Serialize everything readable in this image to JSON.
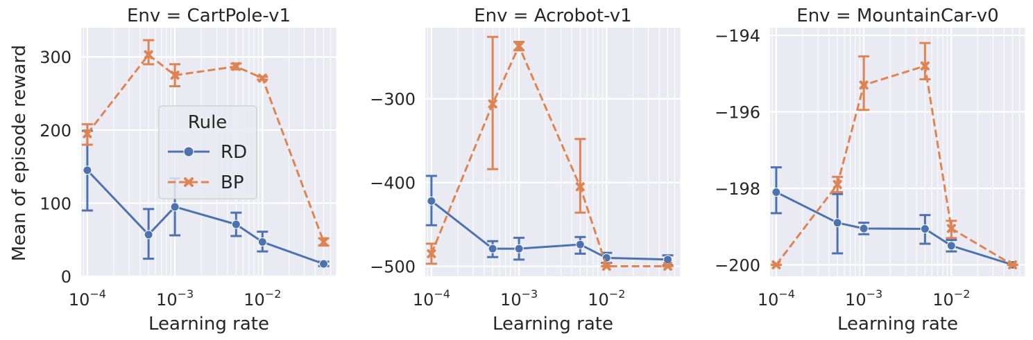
{
  "figure": {
    "ylabel": "Mean of episode reward",
    "xlabel": "Learning rate"
  },
  "legend": {
    "title": "Rule",
    "entries": [
      {
        "name": "RD",
        "color": "#4c72b0",
        "marker": "circle",
        "line": "solid"
      },
      {
        "name": "BP",
        "color": "#dd8452",
        "marker": "x",
        "line": "dashed"
      }
    ],
    "location": "center-left of first panel"
  },
  "style": {
    "panel_background": "#eaeaf2",
    "grid_color": "#ffffff",
    "grid": true,
    "x_scale": "log"
  },
  "chart_data": [
    {
      "type": "line",
      "title": "Env = CartPole-v1",
      "xlabel": "Learning rate",
      "ylabel": "Mean of episode reward",
      "xlim": [
        8.5e-05,
        0.07
      ],
      "ylim": [
        0,
        340
      ],
      "x_ticks": [
        {
          "base": "10",
          "exp": "−4",
          "value": 0.0001
        },
        {
          "base": "10",
          "exp": "−3",
          "value": 0.001
        },
        {
          "base": "10",
          "exp": "−2",
          "value": 0.01
        }
      ],
      "y_ticks": [
        {
          "label": "0",
          "value": 0
        },
        {
          "label": "100",
          "value": 100
        },
        {
          "label": "200",
          "value": 200
        },
        {
          "label": "300",
          "value": 300
        }
      ],
      "series": [
        {
          "name": "RD",
          "x": [
            0.0001,
            0.0005,
            0.001,
            0.005,
            0.01,
            0.05
          ],
          "y": [
            145,
            57,
            95,
            71,
            47,
            17
          ],
          "err_low": [
            90,
            24,
            56,
            55,
            34,
            14
          ],
          "err_high": [
            199,
            92,
            134,
            87,
            61,
            20
          ]
        },
        {
          "name": "BP",
          "x": [
            0.0001,
            0.0005,
            0.001,
            0.005,
            0.01,
            0.05
          ],
          "y": [
            195,
            303,
            275,
            287,
            271,
            47
          ],
          "err_low": [
            180,
            290,
            260,
            283,
            269,
            42
          ],
          "err_high": [
            208,
            323,
            290,
            291,
            273,
            52
          ]
        }
      ]
    },
    {
      "type": "line",
      "title": "Env = Acrobot-v1",
      "xlabel": "Learning rate",
      "ylabel": "",
      "xlim": [
        8.5e-05,
        0.07
      ],
      "ylim": [
        -512,
        -215
      ],
      "x_ticks": [
        {
          "base": "10",
          "exp": "−4",
          "value": 0.0001
        },
        {
          "base": "10",
          "exp": "−3",
          "value": 0.001
        },
        {
          "base": "10",
          "exp": "−2",
          "value": 0.01
        }
      ],
      "y_ticks": [
        {
          "label": "−300",
          "value": -300
        },
        {
          "label": "−400",
          "value": -400
        },
        {
          "label": "−500",
          "value": -500
        }
      ],
      "series": [
        {
          "name": "RD",
          "x": [
            0.0001,
            0.0005,
            0.001,
            0.005,
            0.01,
            0.05
          ],
          "y": [
            -422,
            -479,
            -479,
            -474,
            -490,
            -492
          ],
          "err_low": [
            -451,
            -489,
            -492,
            -485,
            -496,
            -499
          ],
          "err_high": [
            -392,
            -470,
            -466,
            -465,
            -484,
            -487
          ]
        },
        {
          "name": "BP",
          "x": [
            0.0001,
            0.0005,
            0.001,
            0.005,
            0.01,
            0.05
          ],
          "y": [
            -485,
            -306,
            -237,
            -405,
            -500,
            -500
          ],
          "err_low": [
            -497,
            -384,
            -242,
            -436,
            -500,
            -500
          ],
          "err_high": [
            -473,
            -226,
            -232,
            -348,
            -500,
            -500
          ]
        }
      ]
    },
    {
      "type": "line",
      "title": "Env = MountainCar-v0",
      "xlabel": "Learning rate",
      "ylabel": "",
      "xlim": [
        8.5e-05,
        0.07
      ],
      "ylim": [
        -200.3,
        -193.8
      ],
      "x_ticks": [
        {
          "base": "10",
          "exp": "−4",
          "value": 0.0001
        },
        {
          "base": "10",
          "exp": "−3",
          "value": 0.001
        },
        {
          "base": "10",
          "exp": "−2",
          "value": 0.01
        }
      ],
      "y_ticks": [
        {
          "label": "−194",
          "value": -194
        },
        {
          "label": "−196",
          "value": -196
        },
        {
          "label": "−198",
          "value": -198
        },
        {
          "label": "−200",
          "value": -200
        }
      ],
      "series": [
        {
          "name": "RD",
          "x": [
            0.0001,
            0.0005,
            0.001,
            0.005,
            0.01,
            0.05
          ],
          "y": [
            -198.1,
            -198.9,
            -199.05,
            -199.06,
            -199.5,
            -200.0
          ],
          "err_low": [
            -198.65,
            -199.7,
            -199.2,
            -199.45,
            -199.65,
            -200.0
          ],
          "err_high": [
            -197.45,
            -198.15,
            -198.9,
            -198.7,
            -199.35,
            -200.0
          ]
        },
        {
          "name": "BP",
          "x": [
            0.0001,
            0.0005,
            0.001,
            0.005,
            0.01,
            0.05
          ],
          "y": [
            -200.0,
            -197.9,
            -195.3,
            -194.8,
            -199.05,
            -200.0
          ],
          "err_low": [
            -200.0,
            -198.1,
            -195.95,
            -195.15,
            -199.3,
            -200.0
          ],
          "err_high": [
            -200.0,
            -197.7,
            -194.55,
            -194.2,
            -198.85,
            -200.0
          ]
        }
      ]
    }
  ]
}
